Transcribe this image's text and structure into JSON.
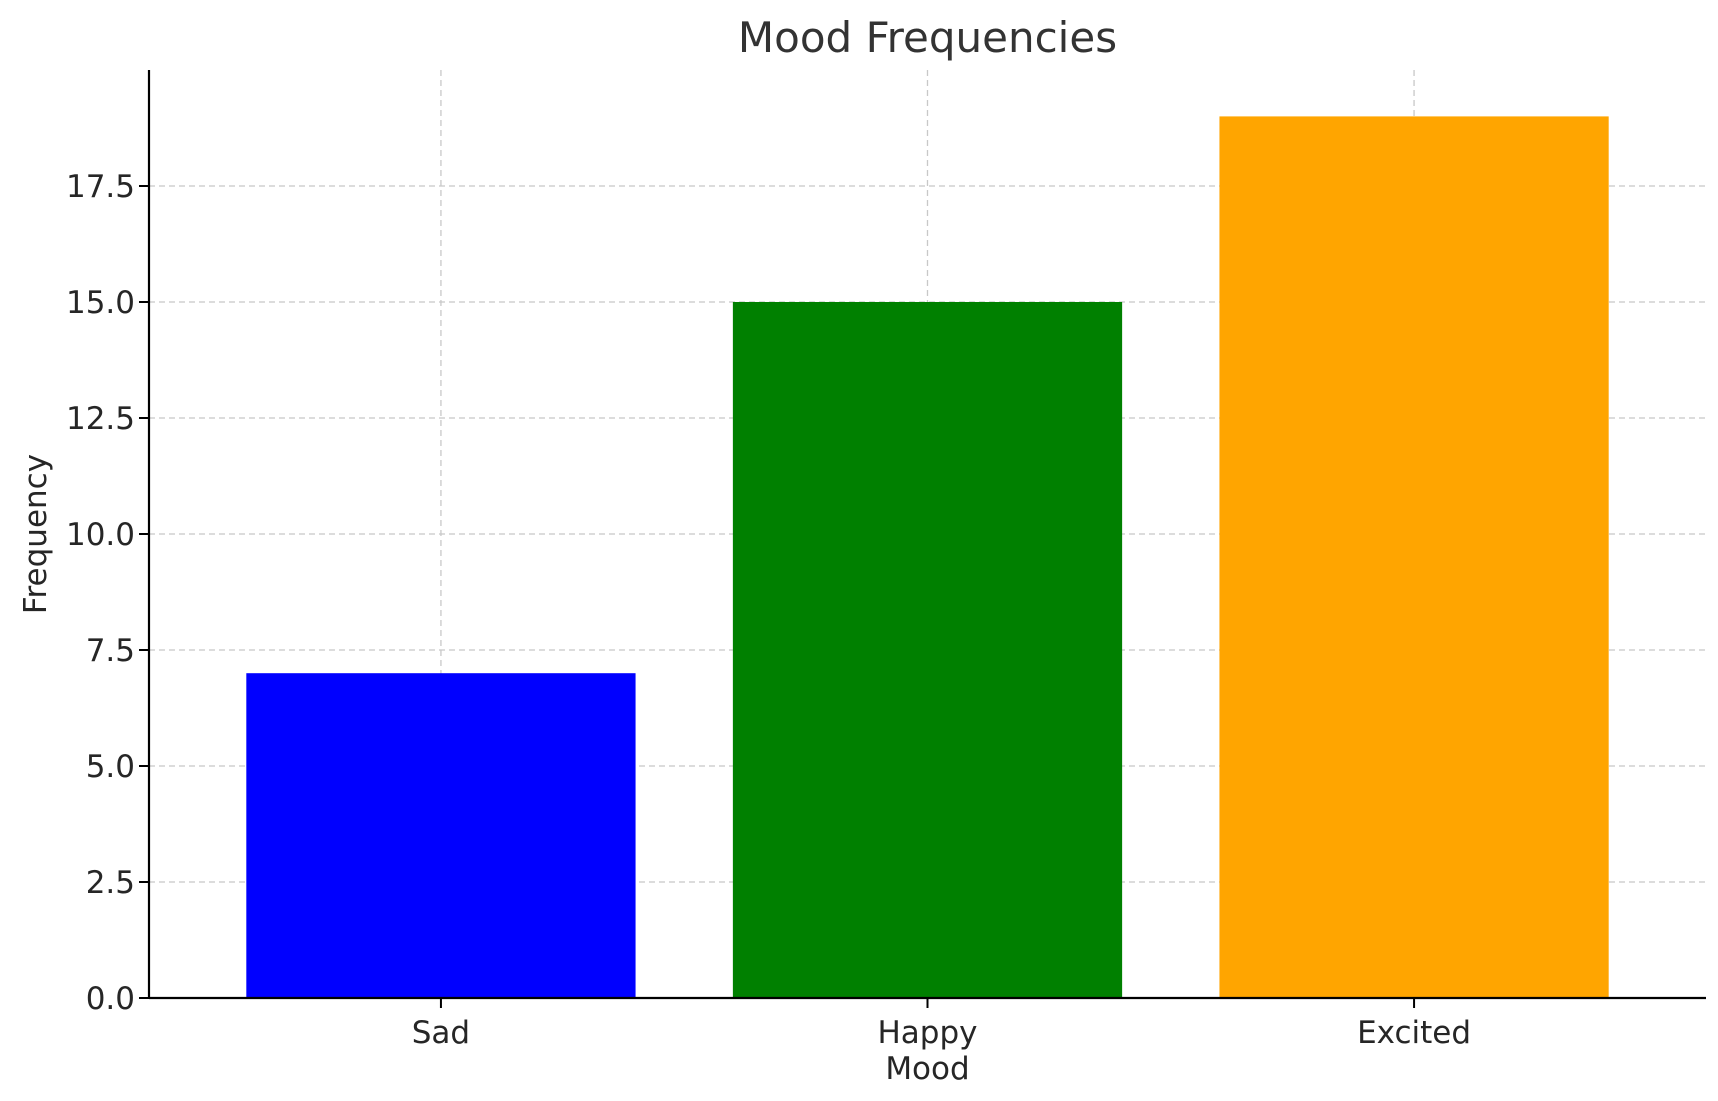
{
  "chart_data": {
    "type": "bar",
    "title": "Mood Frequencies",
    "xlabel": "Mood",
    "ylabel": "Frequency",
    "categories": [
      "Sad",
      "Happy",
      "Excited"
    ],
    "values": [
      7,
      15,
      19
    ],
    "colors": [
      "#0000ff",
      "#008000",
      "#ffa500"
    ],
    "ylim": [
      0,
      20
    ],
    "yticks": [
      0.0,
      2.5,
      5.0,
      7.5,
      10.0,
      12.5,
      15.0,
      17.5
    ],
    "ytick_labels": [
      "0.0",
      "2.5",
      "5.0",
      "7.5",
      "10.0",
      "12.5",
      "15.0",
      "17.5"
    ],
    "grid": true,
    "legend": false
  }
}
